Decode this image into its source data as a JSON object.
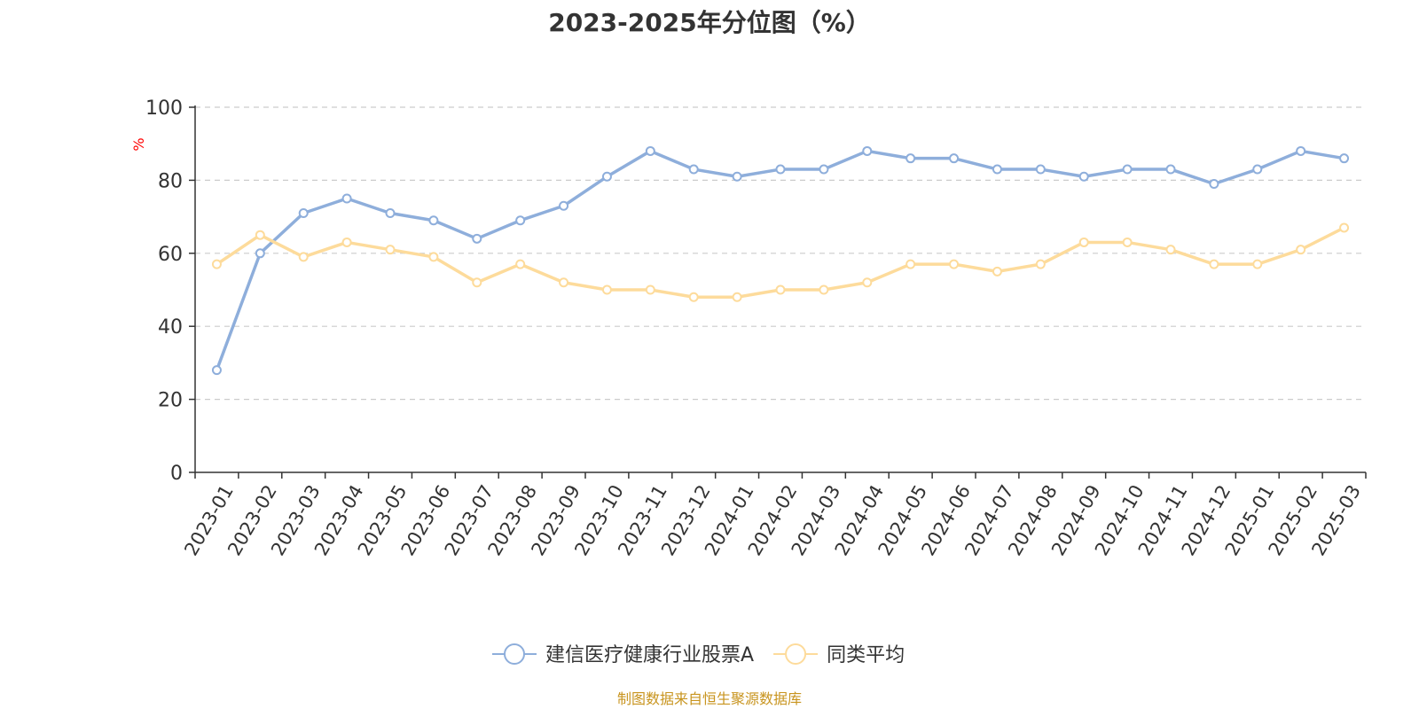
{
  "chart_data": {
    "type": "line",
    "title": "2023-2025年分位图（%）",
    "ylabel": "%",
    "xlabel": "",
    "ylim": [
      0,
      100
    ],
    "yticks": [
      0,
      20,
      40,
      60,
      80,
      100
    ],
    "grid": "horizontal-dashed",
    "legend_position": "bottom-center",
    "categories": [
      "2023-01",
      "2023-02",
      "2023-03",
      "2023-04",
      "2023-05",
      "2023-06",
      "2023-07",
      "2023-08",
      "2023-09",
      "2023-10",
      "2023-11",
      "2023-12",
      "2024-01",
      "2024-02",
      "2024-03",
      "2024-04",
      "2024-05",
      "2024-06",
      "2024-07",
      "2024-08",
      "2024-09",
      "2024-10",
      "2024-11",
      "2024-12",
      "2025-01",
      "2025-02",
      "2025-03"
    ],
    "series": [
      {
        "name": "建信医疗健康行业股票A",
        "color": "#8eaedb",
        "values": [
          28,
          60,
          71,
          75,
          71,
          69,
          64,
          69,
          73,
          81,
          88,
          83,
          81,
          83,
          83,
          88,
          86,
          86,
          83,
          83,
          81,
          83,
          83,
          79,
          83,
          88,
          86
        ]
      },
      {
        "name": "同类平均",
        "color": "#fddb9b",
        "values": [
          57,
          65,
          59,
          63,
          61,
          59,
          52,
          57,
          52,
          50,
          50,
          48,
          48,
          50,
          50,
          52,
          57,
          57,
          55,
          57,
          63,
          63,
          61,
          57,
          57,
          61,
          67
        ]
      }
    ]
  },
  "colors": {
    "axis": "#333333",
    "grid": "#cccccc",
    "ylabel": "#ff0000",
    "source": "#c8941e"
  },
  "source_note": "制图数据来自恒生聚源数据库"
}
